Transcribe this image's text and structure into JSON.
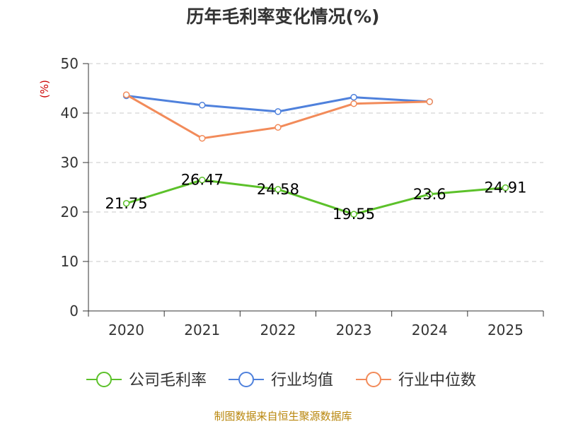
{
  "chart_data": {
    "type": "line",
    "title": "历年毛利率变化情况(%)",
    "ylabel": "(%)",
    "xlabel": "",
    "ylim": [
      0,
      50
    ],
    "yticks": [
      0,
      10,
      20,
      30,
      40,
      50
    ],
    "categories": [
      "2020",
      "2021",
      "2022",
      "2023",
      "2024",
      "2025"
    ],
    "grid": true,
    "legend_position": "bottom",
    "series": [
      {
        "name": "公司毛利率",
        "color": "#5cc12a",
        "values": [
          21.75,
          26.47,
          24.58,
          19.55,
          23.6,
          24.91
        ],
        "labels": [
          "21.75",
          "26.47",
          "24.58",
          "19.55",
          "23.6",
          "24.91"
        ]
      },
      {
        "name": "行业均值",
        "color": "#4f81dc",
        "values": [
          43.5,
          41.6,
          40.3,
          43.2,
          42.3,
          null
        ]
      },
      {
        "name": "行业中位数",
        "color": "#f28b5a",
        "values": [
          43.7,
          34.9,
          37.1,
          41.9,
          42.3,
          null
        ]
      }
    ]
  },
  "footer": {
    "source": "制图数据来自恒生聚源数据库"
  }
}
